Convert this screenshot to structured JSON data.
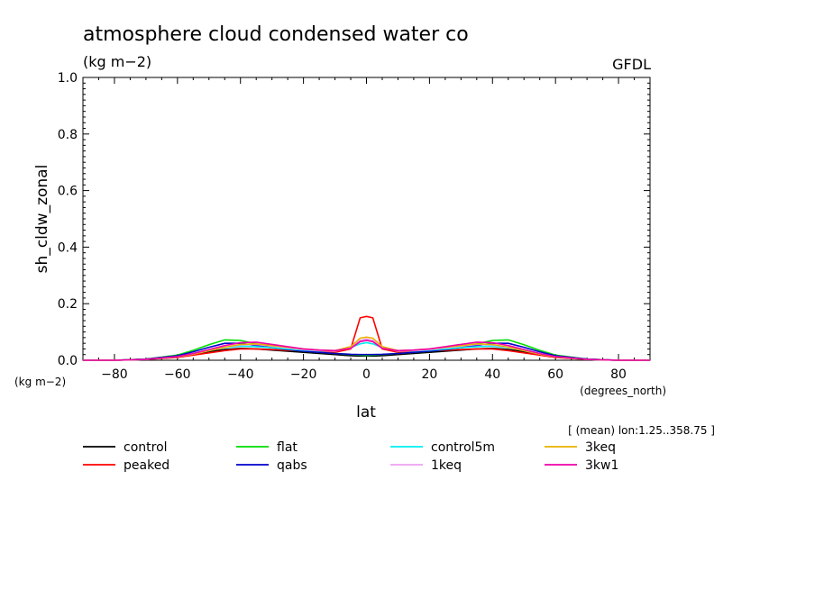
{
  "chart_data": {
    "type": "line",
    "title": "atmosphere cloud condensed water co",
    "units_label": "(kg m−2)",
    "institution": "GFDL",
    "ylabel": "sh_cldw_zonal",
    "xlabel": "lat",
    "x_units": "(degrees_north)",
    "y_units": "(kg m−2)",
    "subset_note": "[ (mean) lon:1.25..358.75 ]",
    "xlim": [
      -90,
      90
    ],
    "ylim": [
      0,
      1
    ],
    "x_ticks": [
      -80,
      -60,
      -40,
      -20,
      0,
      20,
      40,
      60,
      80
    ],
    "x_tick_labels": [
      "−80",
      "−60",
      "−40",
      "−20",
      "0",
      "20",
      "40",
      "60",
      "80"
    ],
    "y_ticks": [
      0,
      0.2,
      0.4,
      0.6,
      0.8,
      1.0
    ],
    "y_tick_labels": [
      "0.0",
      "0.2",
      "0.4",
      "0.6",
      "0.8",
      "1.0"
    ],
    "x": [
      -90,
      -80,
      -70,
      -60,
      -55,
      -50,
      -45,
      -40,
      -35,
      -30,
      -25,
      -20,
      -15,
      -10,
      -5,
      -2,
      0,
      2,
      5,
      10,
      15,
      20,
      25,
      30,
      35,
      40,
      45,
      50,
      55,
      60,
      70,
      80,
      90
    ],
    "series": [
      {
        "name": "control",
        "color": "#000000",
        "values": [
          0,
          0,
          0.003,
          0.012,
          0.02,
          0.03,
          0.038,
          0.042,
          0.04,
          0.036,
          0.032,
          0.028,
          0.024,
          0.02,
          0.016,
          0.015,
          0.015,
          0.015,
          0.016,
          0.02,
          0.024,
          0.028,
          0.032,
          0.036,
          0.04,
          0.042,
          0.038,
          0.03,
          0.02,
          0.012,
          0.003,
          0,
          0
        ]
      },
      {
        "name": "peaked",
        "color": "#ff0000",
        "values": [
          0,
          0,
          0.003,
          0.01,
          0.018,
          0.026,
          0.034,
          0.04,
          0.04,
          0.038,
          0.035,
          0.033,
          0.03,
          0.028,
          0.04,
          0.15,
          0.155,
          0.15,
          0.04,
          0.028,
          0.03,
          0.033,
          0.035,
          0.038,
          0.04,
          0.04,
          0.034,
          0.026,
          0.018,
          0.01,
          0.003,
          0,
          0
        ]
      },
      {
        "name": "flat",
        "color": "#00dd00",
        "values": [
          0,
          0,
          0.004,
          0.018,
          0.035,
          0.055,
          0.072,
          0.07,
          0.058,
          0.046,
          0.038,
          0.032,
          0.028,
          0.024,
          0.02,
          0.018,
          0.017,
          0.018,
          0.02,
          0.024,
          0.028,
          0.032,
          0.038,
          0.046,
          0.058,
          0.07,
          0.072,
          0.055,
          0.035,
          0.018,
          0.004,
          0,
          0
        ]
      },
      {
        "name": "qabs",
        "color": "#0000cc",
        "values": [
          0,
          0,
          0.004,
          0.016,
          0.03,
          0.046,
          0.06,
          0.06,
          0.052,
          0.044,
          0.038,
          0.032,
          0.028,
          0.024,
          0.021,
          0.02,
          0.02,
          0.02,
          0.021,
          0.024,
          0.028,
          0.032,
          0.038,
          0.044,
          0.052,
          0.06,
          0.06,
          0.046,
          0.03,
          0.016,
          0.004,
          0,
          0
        ]
      },
      {
        "name": "control5m",
        "color": "#00eeee",
        "values": [
          0,
          0,
          0.003,
          0.012,
          0.022,
          0.034,
          0.045,
          0.05,
          0.048,
          0.044,
          0.04,
          0.036,
          0.033,
          0.034,
          0.045,
          0.058,
          0.062,
          0.058,
          0.045,
          0.034,
          0.033,
          0.036,
          0.04,
          0.044,
          0.048,
          0.05,
          0.045,
          0.034,
          0.022,
          0.012,
          0.003,
          0,
          0
        ]
      },
      {
        "name": "1keq",
        "color": "#f0a0f0",
        "values": [
          0,
          0,
          0.003,
          0.012,
          0.022,
          0.034,
          0.046,
          0.054,
          0.056,
          0.05,
          0.044,
          0.038,
          0.034,
          0.032,
          0.045,
          0.07,
          0.075,
          0.07,
          0.045,
          0.032,
          0.034,
          0.038,
          0.044,
          0.05,
          0.056,
          0.054,
          0.046,
          0.034,
          0.022,
          0.012,
          0.003,
          0,
          0
        ]
      },
      {
        "name": "3keq",
        "color": "#e8b000",
        "values": [
          0,
          0,
          0.003,
          0.012,
          0.022,
          0.034,
          0.046,
          0.056,
          0.058,
          0.052,
          0.046,
          0.04,
          0.036,
          0.034,
          0.048,
          0.078,
          0.082,
          0.078,
          0.048,
          0.034,
          0.036,
          0.04,
          0.046,
          0.052,
          0.058,
          0.056,
          0.046,
          0.034,
          0.022,
          0.012,
          0.003,
          0,
          0
        ]
      },
      {
        "name": "3kw1",
        "color": "#ee00aa",
        "values": [
          0,
          0,
          0.003,
          0.013,
          0.024,
          0.038,
          0.052,
          0.062,
          0.064,
          0.056,
          0.048,
          0.04,
          0.036,
          0.034,
          0.042,
          0.066,
          0.07,
          0.066,
          0.042,
          0.034,
          0.036,
          0.04,
          0.048,
          0.056,
          0.064,
          0.062,
          0.052,
          0.038,
          0.024,
          0.013,
          0.003,
          0,
          0
        ]
      }
    ]
  }
}
